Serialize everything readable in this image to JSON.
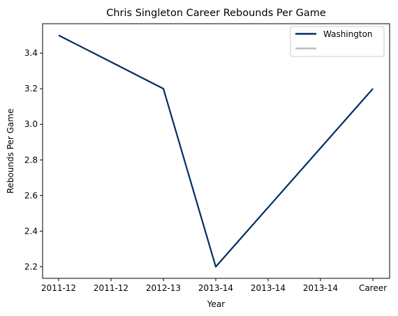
{
  "chart_data": {
    "type": "line",
    "title": "Chris Singleton  Career Rebounds Per Game",
    "xlabel": "Year",
    "ylabel": "Rebounds Per Game",
    "categories": [
      "2011-12",
      "2011-12",
      "2012-13",
      "2013-14",
      "2013-14",
      "2013-14",
      "Career"
    ],
    "x_ticks": [
      "2011-12",
      "2011-12",
      "2012-13",
      "2013-14",
      "2013-14",
      "2013-14",
      "Career"
    ],
    "y_ticks": [
      "2.2",
      "2.4",
      "2.6",
      "2.8",
      "3.0",
      "3.2",
      "3.4"
    ],
    "ylim": [
      2.135,
      3.565
    ],
    "grid": false,
    "legend_position": "top-right",
    "series": [
      {
        "name": "Washington",
        "color": "#002D62",
        "points": [
          {
            "x": "2011-12",
            "y": 3.5
          },
          {
            "x": "2012-13",
            "y": 3.2
          },
          {
            "x": "2013-14",
            "y": 2.2
          },
          {
            "x": "Career",
            "y": 3.2
          }
        ]
      },
      {
        "name": "",
        "color": "#BDBDBD",
        "points": []
      }
    ]
  }
}
